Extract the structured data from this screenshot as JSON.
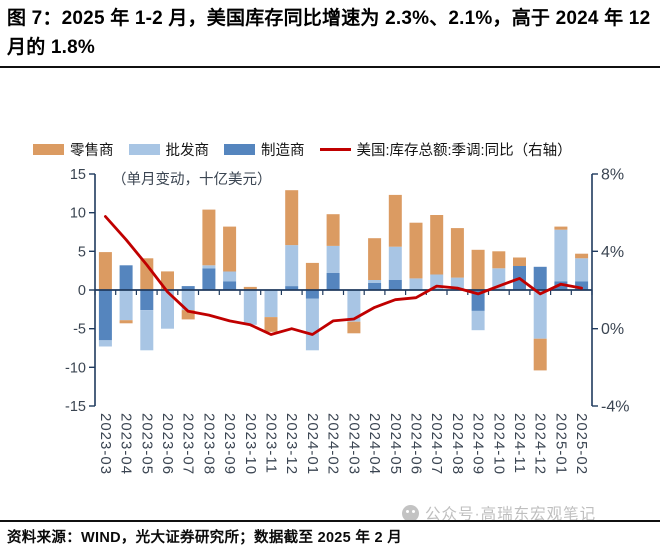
{
  "title": "图 7：2025 年 1-2 月，美国库存同比增速为 2.3%、2.1%，高于 2024 年 12 月的 1.8%",
  "footer": {
    "source": "资料来源：WIND，光大证券研究所；数据截至 2025 年 2 月"
  },
  "watermark": {
    "text": "公众号·高瑞东宏观笔记"
  },
  "colors": {
    "retailer": "#DB9B62",
    "wholesaler": "#A8C5E4",
    "manufacturer": "#5585BE",
    "line": "#C00000",
    "axis": "#1F3A5E",
    "tick": "#3B4552"
  },
  "chart_data": {
    "type": "bar",
    "subtype": "stacked-columns-with-line",
    "annotation": "（单月变动，十亿美元）",
    "legend_position": "top",
    "grid": false,
    "categories": [
      "2023-03",
      "2023-04",
      "2023-05",
      "2023-06",
      "2023-07",
      "2023-08",
      "2023-09",
      "2023-10",
      "2023-11",
      "2023-12",
      "2024-01",
      "2024-02",
      "2024-03",
      "2024-04",
      "2024-05",
      "2024-06",
      "2024-07",
      "2024-08",
      "2024-09",
      "2024-10",
      "2024-11",
      "2024-12",
      "2025-01",
      "2025-02"
    ],
    "series": [
      {
        "name": "零售商",
        "color": "#DB9B62",
        "values": [
          4.9,
          -0.4,
          4.1,
          2.4,
          -1.2,
          7.2,
          5.8,
          0.4,
          -1.9,
          7.1,
          3.5,
          4.1,
          -1.5,
          5.4,
          6.7,
          7.2,
          7.7,
          6.4,
          5.2,
          2.2,
          1.1,
          -4.1,
          0.4,
          0.6
        ]
      },
      {
        "name": "批发商",
        "color": "#A8C5E4",
        "values": [
          -0.8,
          -3.9,
          -5.2,
          -5.0,
          -2.6,
          0.4,
          1.3,
          -4.5,
          -3.5,
          5.3,
          -6.7,
          3.5,
          -4.1,
          0.4,
          4.3,
          1.5,
          2.0,
          1.6,
          -2.5,
          2.8,
          0,
          -6.3,
          6.7,
          3.0
        ]
      },
      {
        "name": "制造商",
        "color": "#5585BE",
        "values": [
          -6.5,
          3.2,
          -2.6,
          0,
          0.5,
          2.8,
          1.1,
          0,
          0,
          0.5,
          -1.1,
          2.2,
          0,
          0.9,
          1.3,
          0,
          0,
          0,
          -2.7,
          0,
          3.1,
          3.0,
          1.1,
          1.1
        ]
      }
    ],
    "stack_order_from_axis": [
      "制造商",
      "批发商",
      "零售商"
    ],
    "line_series": {
      "name": "美国:库存总额:季调:同比（右轴）",
      "color": "#C00000",
      "axis": "right",
      "values": [
        5.8,
        4.6,
        3.3,
        1.9,
        0.9,
        0.7,
        0.4,
        0.2,
        -0.3,
        0.0,
        -0.3,
        0.4,
        0.5,
        1.1,
        1.5,
        1.6,
        2.2,
        2.1,
        1.8,
        2.2,
        2.6,
        1.8,
        2.3,
        2.1
      ]
    },
    "left_axis": {
      "min": -15,
      "max": 15,
      "step": 5,
      "ticks": [
        15,
        10,
        5,
        0,
        -5,
        -10,
        -15
      ]
    },
    "right_axis": {
      "min": -4,
      "max": 8,
      "ticks": [
        8,
        4,
        0,
        -4
      ],
      "tick_labels": [
        "8%",
        "4%",
        "0%",
        "-4%"
      ]
    }
  }
}
